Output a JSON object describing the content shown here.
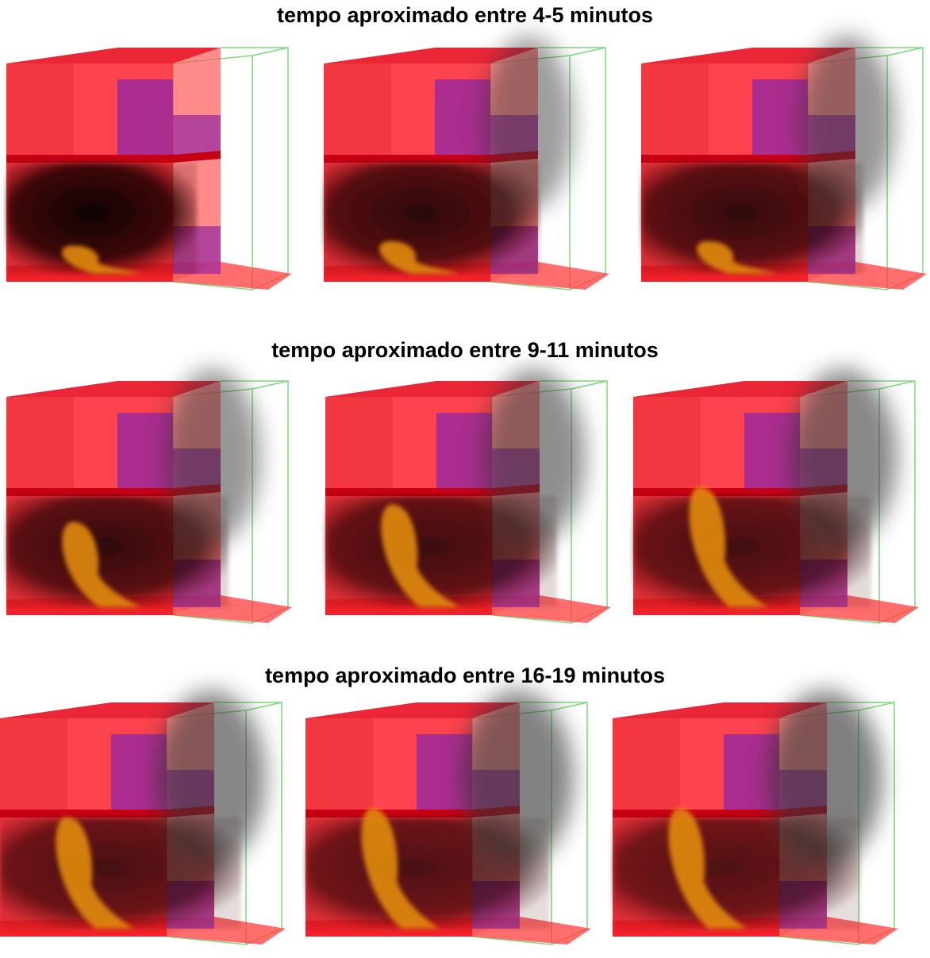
{
  "headings": [
    "tempo aproximado entre 4-5 minutos",
    "tempo aproximado entre 9-11 minutos",
    "tempo aproximado entre 16-19 minutos"
  ]
}
